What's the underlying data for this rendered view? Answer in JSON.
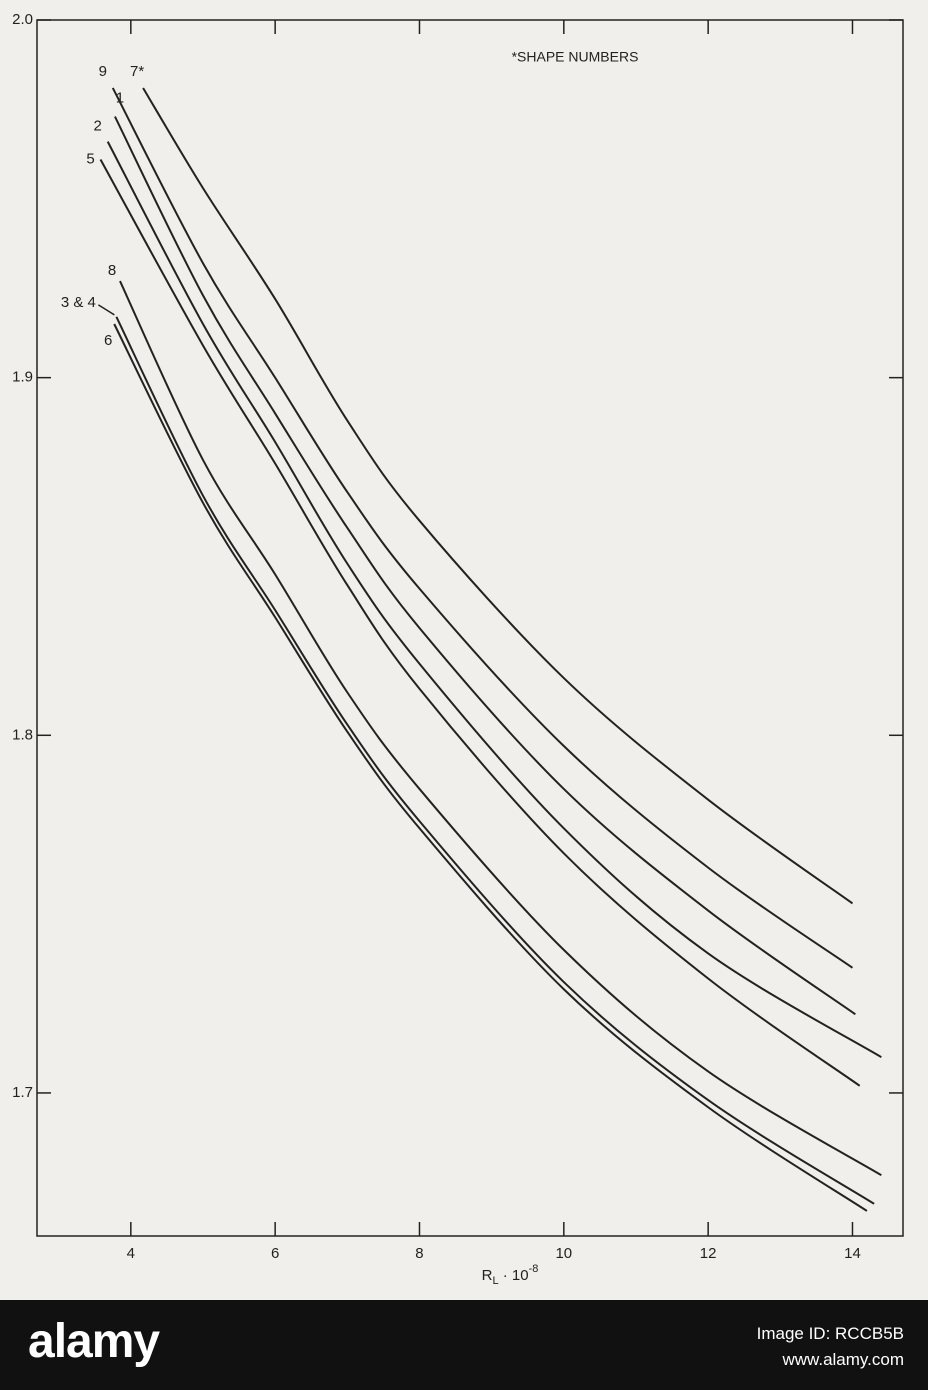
{
  "chart_data": {
    "type": "line",
    "annotation": "*SHAPE NUMBERS",
    "x_label": {
      "base": "R",
      "sub": "L",
      "mid": " · 10",
      "sup": "-8"
    },
    "xlim": [
      2.7,
      14.7
    ],
    "xticks": [
      4,
      6,
      8,
      10,
      12,
      14
    ],
    "ylim": [
      1.66,
      2.0
    ],
    "yticks": [
      {
        "value": 2.0,
        "label": "2.0"
      },
      1.9,
      1.8,
      1.7
    ],
    "color": "#222222",
    "series": [
      {
        "name": "9",
        "x": [
          3.75,
          5,
          6,
          7,
          8,
          10,
          12,
          14.0
        ],
        "values": [
          1.981,
          1.932,
          1.9,
          1.868,
          1.841,
          1.797,
          1.763,
          1.735
        ]
      },
      {
        "name": "7*",
        "x": [
          4.17,
          5,
          6,
          7,
          8,
          10,
          12,
          14.0
        ],
        "values": [
          1.981,
          1.953,
          1.922,
          1.888,
          1.86,
          1.816,
          1.782,
          1.753
        ]
      },
      {
        "name": "1",
        "x": [
          3.78,
          5,
          6,
          7,
          8,
          10,
          12,
          14.04
        ],
        "values": [
          1.973,
          1.923,
          1.89,
          1.858,
          1.83,
          1.785,
          1.751,
          1.722
        ]
      },
      {
        "name": "2",
        "x": [
          3.68,
          5,
          6,
          7,
          8,
          10,
          12,
          14.4
        ],
        "values": [
          1.966,
          1.915,
          1.882,
          1.848,
          1.82,
          1.774,
          1.739,
          1.71
        ]
      },
      {
        "name": "5",
        "x": [
          3.58,
          5,
          6,
          7,
          8,
          10,
          12,
          14.1
        ],
        "values": [
          1.961,
          1.909,
          1.876,
          1.842,
          1.813,
          1.767,
          1.732,
          1.702
        ]
      },
      {
        "name": "8",
        "x": [
          3.85,
          5,
          6,
          7,
          8,
          10,
          12,
          14.4
        ],
        "values": [
          1.927,
          1.877,
          1.845,
          1.812,
          1.785,
          1.74,
          1.706,
          1.677
        ]
      },
      {
        "name": "3 & 4",
        "x": [
          3.8,
          5,
          6,
          7,
          8,
          10,
          12,
          14.3
        ],
        "values": [
          1.917,
          1.867,
          1.835,
          1.803,
          1.776,
          1.731,
          1.698,
          1.669
        ]
      },
      {
        "name": "6",
        "x": [
          3.77,
          5,
          6,
          7,
          8,
          10,
          12,
          14.2
        ],
        "values": [
          1.915,
          1.865,
          1.833,
          1.801,
          1.774,
          1.729,
          1.696,
          1.667
        ]
      }
    ]
  },
  "watermark": {
    "brand": "alamy",
    "image_id": "Image ID: RCCB5B",
    "url": "www.alamy.com"
  }
}
